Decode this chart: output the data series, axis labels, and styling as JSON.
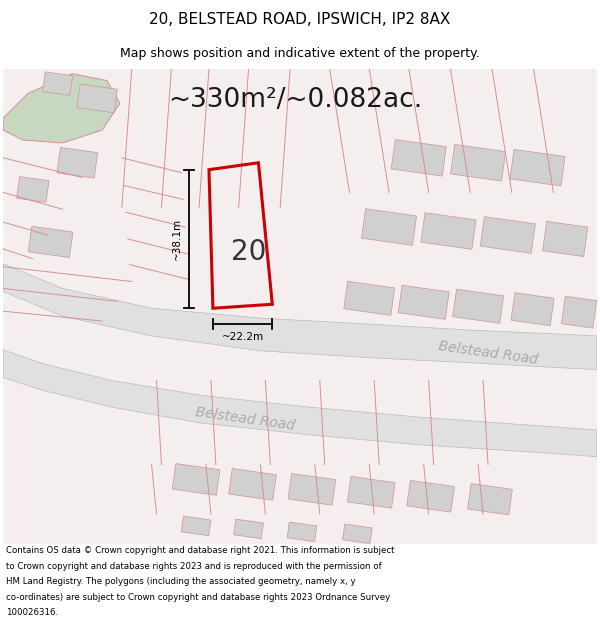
{
  "title_line1": "20, BELSTEAD ROAD, IPSWICH, IP2 8AX",
  "title_line2": "Map shows position and indicative extent of the property.",
  "area_text": "~330m²/~0.082ac.",
  "label_height": "~38.1m",
  "label_width": "~22.2m",
  "property_number": "20",
  "road_name1": "Belstead Road",
  "road_name2": "Belstead Road",
  "footer_lines": [
    "Contains OS data © Crown copyright and database right 2021. This information is subject",
    "to Crown copyright and database rights 2023 and is reproduced with the permission of",
    "HM Land Registry. The polygons (including the associated geometry, namely x, y",
    "co-ordinates) are subject to Crown copyright and database rights 2023 Ordnance Survey",
    "100026316."
  ],
  "bg_color": "#ffffff",
  "map_bg": "#f5eeee",
  "road_fill": "#e0e0e0",
  "building_fill": "#d0d0d0",
  "green_fill": "#c8d8c0",
  "property_outline_color": "#cc0000",
  "line_color": "#d49090",
  "dim_line_color": "#000000",
  "road_label_color": "#aaaaaa",
  "title_color": "#000000",
  "footer_color": "#000000"
}
